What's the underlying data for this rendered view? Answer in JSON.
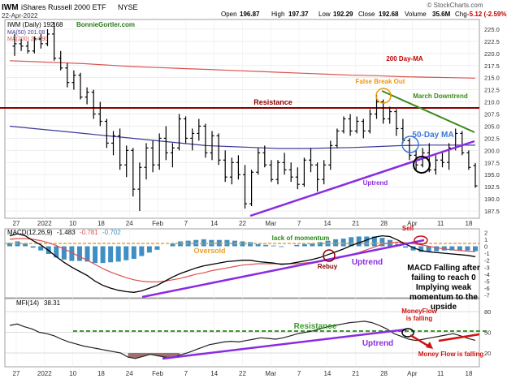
{
  "header": {
    "symbol": "IWM",
    "name": "iShares Russell 2000 ETF",
    "exchange": "NYSE",
    "date": "22-Apr-2022",
    "open_label": "Open",
    "open": "196.87",
    "high_label": "High",
    "high": "197.37",
    "low_label": "Low",
    "low": "192.29",
    "close_label": "Close",
    "close": "192.68",
    "volume_label": "Volume",
    "volume": "35.6M",
    "chg_label": "Chg",
    "chg": "-5.12 (-2.59%)",
    "copyright": "© StockCharts.com"
  },
  "legend": {
    "price": "IWM (Daily) 192.68",
    "author": "BonnieGortler.com",
    "ma50": "MA(50) 201.08",
    "ma200": "MA(200) 214.90"
  },
  "annotations": {
    "ma200": "200 Day-MA",
    "false_break": "False Break Out",
    "march_downtrend": "March Downtrend",
    "resistance": "Resistance",
    "ma50": "50-Day MA",
    "uptrend": "Uptrend",
    "macd_lack": "lack of momentum",
    "macd_sell": "Sell",
    "macd_oversold": "Oversold",
    "macd_rebuy": "Rebuy",
    "macd_uptrend": "Uptrend",
    "macd_note": [
      "MACD Falling after",
      "failing to reach 0",
      "Implying weak",
      "momentum to the",
      "upside"
    ],
    "mfi_moneyflow": [
      "MoneyFlow",
      "is falling"
    ],
    "mfi_resistance": "Resistance",
    "mfi_uptrend": "Uptrend",
    "mfi_falling": "Money Flow is falling"
  },
  "macd_legend": {
    "label": "MACD(12,26,9)",
    "macd": "-1.483",
    "signal": "-0.781",
    "hist": "-0.702"
  },
  "mfi_legend": {
    "label": "MFI(14)",
    "value": "38.31"
  },
  "colors": {
    "price_bar": "#000000",
    "ma50": "#3b3b9a",
    "ma200": "#d9534f",
    "resistance": "#8b0000",
    "downtrend": "#3a8a1a",
    "uptrend": "#8a2be2",
    "false_break": "#f0960a",
    "ma50_circle": "#3a78d8",
    "macd_hist": "#3f8fc4",
    "macd_signal": "#e05050",
    "mfi_resistance": "#3a9a2a",
    "mfi_oversold_fill": "#a07070",
    "sell": "#d01010"
  },
  "x_axis_labels": [
    "27",
    "2022",
    "10",
    "18",
    "24",
    "Feb",
    "7",
    "14",
    "22",
    "Mar",
    "7",
    "14",
    "21",
    "28",
    "Apr",
    "11",
    "18"
  ],
  "chart_data": [
    {
      "type": "ohlc",
      "title": "IWM iShares Russell 2000 ETF NYSE",
      "ylim": [
        186,
        227
      ],
      "y_ticks": [
        187.5,
        190.0,
        192.5,
        195.0,
        197.5,
        200.0,
        202.5,
        205.0,
        207.5,
        210.0,
        212.5,
        215.0,
        217.5,
        220.0,
        222.5,
        225.0
      ],
      "x_labels": [
        "27",
        "2022",
        "10",
        "18",
        "24",
        "Feb",
        "7",
        "14",
        "22",
        "Mar",
        "7",
        "14",
        "21",
        "28",
        "Apr",
        "11",
        "18"
      ],
      "bars": [
        {
          "o": 221.5,
          "h": 224.0,
          "l": 219.5,
          "c": 222.0
        },
        {
          "o": 222.0,
          "h": 223.0,
          "l": 220.5,
          "c": 221.5
        },
        {
          "o": 221.5,
          "h": 222.5,
          "l": 220.0,
          "c": 220.5
        },
        {
          "o": 220.5,
          "h": 223.5,
          "l": 220.0,
          "c": 223.0
        },
        {
          "o": 223.0,
          "h": 224.0,
          "l": 221.0,
          "c": 222.0
        },
        {
          "o": 222.0,
          "h": 225.0,
          "l": 221.5,
          "c": 224.0
        },
        {
          "o": 224.0,
          "h": 226.5,
          "l": 218.5,
          "c": 219.0
        },
        {
          "o": 219.0,
          "h": 220.5,
          "l": 216.5,
          "c": 217.0
        },
        {
          "o": 217.0,
          "h": 218.0,
          "l": 213.0,
          "c": 214.0
        },
        {
          "o": 214.0,
          "h": 216.5,
          "l": 212.5,
          "c": 215.5
        },
        {
          "o": 215.5,
          "h": 216.0,
          "l": 210.5,
          "c": 211.0
        },
        {
          "o": 211.0,
          "h": 213.0,
          "l": 209.5,
          "c": 212.0
        },
        {
          "o": 212.0,
          "h": 212.5,
          "l": 206.5,
          "c": 207.5
        },
        {
          "o": 207.5,
          "h": 210.0,
          "l": 205.0,
          "c": 206.0
        },
        {
          "o": 206.0,
          "h": 206.5,
          "l": 200.5,
          "c": 201.5
        },
        {
          "o": 201.5,
          "h": 204.0,
          "l": 199.0,
          "c": 203.0
        },
        {
          "o": 203.0,
          "h": 204.5,
          "l": 196.0,
          "c": 197.0
        },
        {
          "o": 197.0,
          "h": 201.0,
          "l": 194.5,
          "c": 200.0
        },
        {
          "o": 200.0,
          "h": 200.5,
          "l": 190.5,
          "c": 192.0
        },
        {
          "o": 192.0,
          "h": 197.5,
          "l": 187.5,
          "c": 196.5
        },
        {
          "o": 196.5,
          "h": 201.5,
          "l": 194.0,
          "c": 200.5
        },
        {
          "o": 200.5,
          "h": 202.0,
          "l": 195.5,
          "c": 197.0
        },
        {
          "o": 197.0,
          "h": 203.5,
          "l": 196.0,
          "c": 202.5
        },
        {
          "o": 202.5,
          "h": 205.0,
          "l": 198.0,
          "c": 199.5
        },
        {
          "o": 199.5,
          "h": 201.5,
          "l": 196.5,
          "c": 200.5
        },
        {
          "o": 200.5,
          "h": 207.5,
          "l": 200.0,
          "c": 206.5
        },
        {
          "o": 206.5,
          "h": 207.0,
          "l": 201.5,
          "c": 202.5
        },
        {
          "o": 202.5,
          "h": 204.5,
          "l": 200.0,
          "c": 203.5
        },
        {
          "o": 203.5,
          "h": 206.5,
          "l": 202.0,
          "c": 205.0
        },
        {
          "o": 205.0,
          "h": 205.5,
          "l": 198.5,
          "c": 199.5
        },
        {
          "o": 199.5,
          "h": 204.0,
          "l": 198.0,
          "c": 203.0
        },
        {
          "o": 203.0,
          "h": 203.5,
          "l": 197.0,
          "c": 198.0
        },
        {
          "o": 198.0,
          "h": 200.0,
          "l": 193.5,
          "c": 194.5
        },
        {
          "o": 194.5,
          "h": 198.5,
          "l": 193.0,
          "c": 197.5
        },
        {
          "o": 197.5,
          "h": 199.0,
          "l": 194.0,
          "c": 195.0
        },
        {
          "o": 195.0,
          "h": 197.0,
          "l": 188.0,
          "c": 189.0
        },
        {
          "o": 189.0,
          "h": 196.0,
          "l": 188.5,
          "c": 195.5
        },
        {
          "o": 195.5,
          "h": 200.5,
          "l": 195.0,
          "c": 199.5
        },
        {
          "o": 199.5,
          "h": 201.0,
          "l": 196.5,
          "c": 197.0
        },
        {
          "o": 197.0,
          "h": 198.0,
          "l": 193.5,
          "c": 194.0
        },
        {
          "o": 194.0,
          "h": 198.0,
          "l": 193.0,
          "c": 197.5
        },
        {
          "o": 197.5,
          "h": 199.5,
          "l": 195.0,
          "c": 196.0
        },
        {
          "o": 196.0,
          "h": 197.5,
          "l": 193.5,
          "c": 194.5
        },
        {
          "o": 194.5,
          "h": 196.5,
          "l": 192.0,
          "c": 193.0
        },
        {
          "o": 193.0,
          "h": 198.5,
          "l": 192.5,
          "c": 198.0
        },
        {
          "o": 198.0,
          "h": 200.5,
          "l": 195.5,
          "c": 197.0
        },
        {
          "o": 197.0,
          "h": 197.5,
          "l": 191.5,
          "c": 194.0
        },
        {
          "o": 194.0,
          "h": 198.0,
          "l": 193.0,
          "c": 197.0
        },
        {
          "o": 197.0,
          "h": 202.0,
          "l": 196.0,
          "c": 201.0
        },
        {
          "o": 201.0,
          "h": 204.5,
          "l": 200.5,
          "c": 204.0
        },
        {
          "o": 204.0,
          "h": 207.0,
          "l": 203.5,
          "c": 206.5
        },
        {
          "o": 206.5,
          "h": 207.5,
          "l": 203.0,
          "c": 204.0
        },
        {
          "o": 204.0,
          "h": 207.0,
          "l": 203.5,
          "c": 206.0
        },
        {
          "o": 206.0,
          "h": 206.5,
          "l": 202.5,
          "c": 204.0
        },
        {
          "o": 204.0,
          "h": 208.5,
          "l": 203.5,
          "c": 207.5
        },
        {
          "o": 207.5,
          "h": 211.5,
          "l": 206.5,
          "c": 210.0
        },
        {
          "o": 210.0,
          "h": 210.5,
          "l": 205.5,
          "c": 206.5
        },
        {
          "o": 206.5,
          "h": 209.0,
          "l": 205.5,
          "c": 208.0
        },
        {
          "o": 208.0,
          "h": 208.5,
          "l": 203.0,
          "c": 204.5
        },
        {
          "o": 204.5,
          "h": 206.5,
          "l": 201.5,
          "c": 202.0
        },
        {
          "o": 202.0,
          "h": 202.5,
          "l": 198.0,
          "c": 199.0
        },
        {
          "o": 199.0,
          "h": 200.0,
          "l": 196.0,
          "c": 197.0
        },
        {
          "o": 197.0,
          "h": 200.5,
          "l": 196.5,
          "c": 199.5
        },
        {
          "o": 199.5,
          "h": 201.5,
          "l": 195.5,
          "c": 196.0
        },
        {
          "o": 196.0,
          "h": 199.0,
          "l": 195.0,
          "c": 198.0
        },
        {
          "o": 198.0,
          "h": 199.5,
          "l": 196.5,
          "c": 197.5
        },
        {
          "o": 197.5,
          "h": 201.5,
          "l": 196.0,
          "c": 200.5
        },
        {
          "o": 200.5,
          "h": 204.5,
          "l": 200.0,
          "c": 203.5
        },
        {
          "o": 203.5,
          "h": 204.0,
          "l": 199.0,
          "c": 199.5
        },
        {
          "o": 199.5,
          "h": 200.0,
          "l": 196.0,
          "c": 196.5
        },
        {
          "o": 196.87,
          "h": 197.37,
          "l": 192.29,
          "c": 192.68
        }
      ],
      "series": [
        {
          "name": "MA(50)",
          "values": [
            205,
            204.5,
            204,
            203.5,
            203,
            202.5,
            202,
            201.5,
            201,
            200.8,
            200.6,
            200.4,
            200.4,
            200.5,
            200.6,
            200.8,
            201.0,
            201.1,
            201.1,
            201.08
          ]
        },
        {
          "name": "MA(200)",
          "values": [
            218.5,
            218.3,
            218.1,
            217.9,
            217.6,
            217.3,
            217.1,
            216.9,
            216.7,
            216.5,
            216.3,
            216.1,
            215.9,
            215.7,
            215.5,
            215.4,
            215.2,
            215.1,
            215.0,
            214.9
          ]
        }
      ]
    },
    {
      "type": "bar",
      "title": "MACD(12,26,9) -1.483, -0.781, -0.702",
      "ylim": [
        -7.5,
        2.5
      ],
      "y_ticks": [
        2,
        1,
        0,
        -1,
        -2,
        -3,
        -4,
        -5,
        -6,
        -7
      ],
      "series": [
        {
          "name": "MACD",
          "values": [
            1.5,
            1.8,
            1.5,
            0.8,
            0.2,
            -0.6,
            -1.5,
            -2.3,
            -3.0,
            -3.6,
            -4.2,
            -5.0,
            -5.6,
            -6.0,
            -6.3,
            -6.5,
            -6.6,
            -6.4,
            -6.0,
            -5.6,
            -5.0,
            -4.4,
            -3.9,
            -3.5,
            -3.1,
            -2.8,
            -2.6,
            -2.4,
            -2.2,
            -2.1,
            -2.0,
            -2.0,
            -2.2,
            -2.3,
            -2.4,
            -2.6,
            -2.5,
            -2.3,
            -2.1,
            -1.9,
            -1.6,
            -1.2,
            -0.8,
            -0.4,
            0.1,
            0.5,
            0.9,
            1.3,
            1.5,
            1.4,
            0.9,
            0.3,
            -0.2,
            -0.6,
            -0.8,
            -0.9,
            -1.0,
            -1.1,
            -1.2,
            -1.3,
            -1.483
          ]
        },
        {
          "name": "Signal",
          "values": [
            1.0,
            1.1,
            1.1,
            1.0,
            0.8,
            0.5,
            0.1,
            -0.4,
            -0.9,
            -1.5,
            -2.0,
            -2.6,
            -3.2,
            -3.7,
            -4.1,
            -4.5,
            -4.8,
            -5.0,
            -5.1,
            -5.1,
            -5.0,
            -4.8,
            -4.6,
            -4.3,
            -4.0,
            -3.8,
            -3.5,
            -3.3,
            -3.1,
            -2.9,
            -2.7,
            -2.6,
            -2.5,
            -2.5,
            -2.5,
            -2.5,
            -2.5,
            -2.5,
            -2.4,
            -2.3,
            -2.2,
            -2.0,
            -1.8,
            -1.5,
            -1.2,
            -0.9,
            -0.5,
            -0.1,
            0.3,
            0.5,
            0.6,
            0.5,
            0.4,
            0.2,
            0.0,
            -0.2,
            -0.4,
            -0.5,
            -0.6,
            -0.7,
            -0.781
          ]
        },
        {
          "name": "Histogram",
          "values": [
            0.5,
            0.7,
            0.4,
            -0.2,
            -0.6,
            -1.1,
            -1.6,
            -1.9,
            -2.1,
            -2.1,
            -2.2,
            -2.4,
            -2.4,
            -2.3,
            -2.2,
            -2.0,
            -1.8,
            -1.4,
            -0.9,
            -0.5,
            0.0,
            0.4,
            0.7,
            0.8,
            0.9,
            1.0,
            0.9,
            0.9,
            0.9,
            0.8,
            0.7,
            0.6,
            0.3,
            0.2,
            0.1,
            -0.1,
            0.0,
            0.2,
            0.3,
            0.4,
            0.6,
            0.8,
            1.0,
            1.1,
            1.3,
            1.4,
            1.4,
            1.4,
            1.2,
            0.9,
            0.3,
            -0.2,
            -0.6,
            -0.8,
            -0.8,
            -0.7,
            -0.6,
            -0.6,
            -0.6,
            -0.6,
            -0.702
          ]
        }
      ]
    },
    {
      "type": "line",
      "title": "MFI(14) 38.31",
      "ylim": [
        0,
        100
      ],
      "y_ticks": [
        80,
        50,
        20
      ],
      "series": [
        {
          "name": "MFI(14)",
          "values": [
            60,
            62,
            58,
            55,
            50,
            48,
            45,
            40,
            36,
            33,
            30,
            28,
            26,
            24,
            22,
            20,
            14,
            12,
            15,
            18,
            16,
            14,
            13,
            17,
            20,
            24,
            28,
            32,
            34,
            36,
            37,
            36,
            38,
            40,
            42,
            41,
            40,
            42,
            45,
            48,
            50,
            52,
            55,
            58,
            60,
            62,
            64,
            65,
            66,
            64,
            60,
            55,
            48,
            44,
            40,
            38,
            40,
            42,
            44,
            46,
            48,
            45,
            41,
            38.31
          ]
        }
      ]
    }
  ]
}
